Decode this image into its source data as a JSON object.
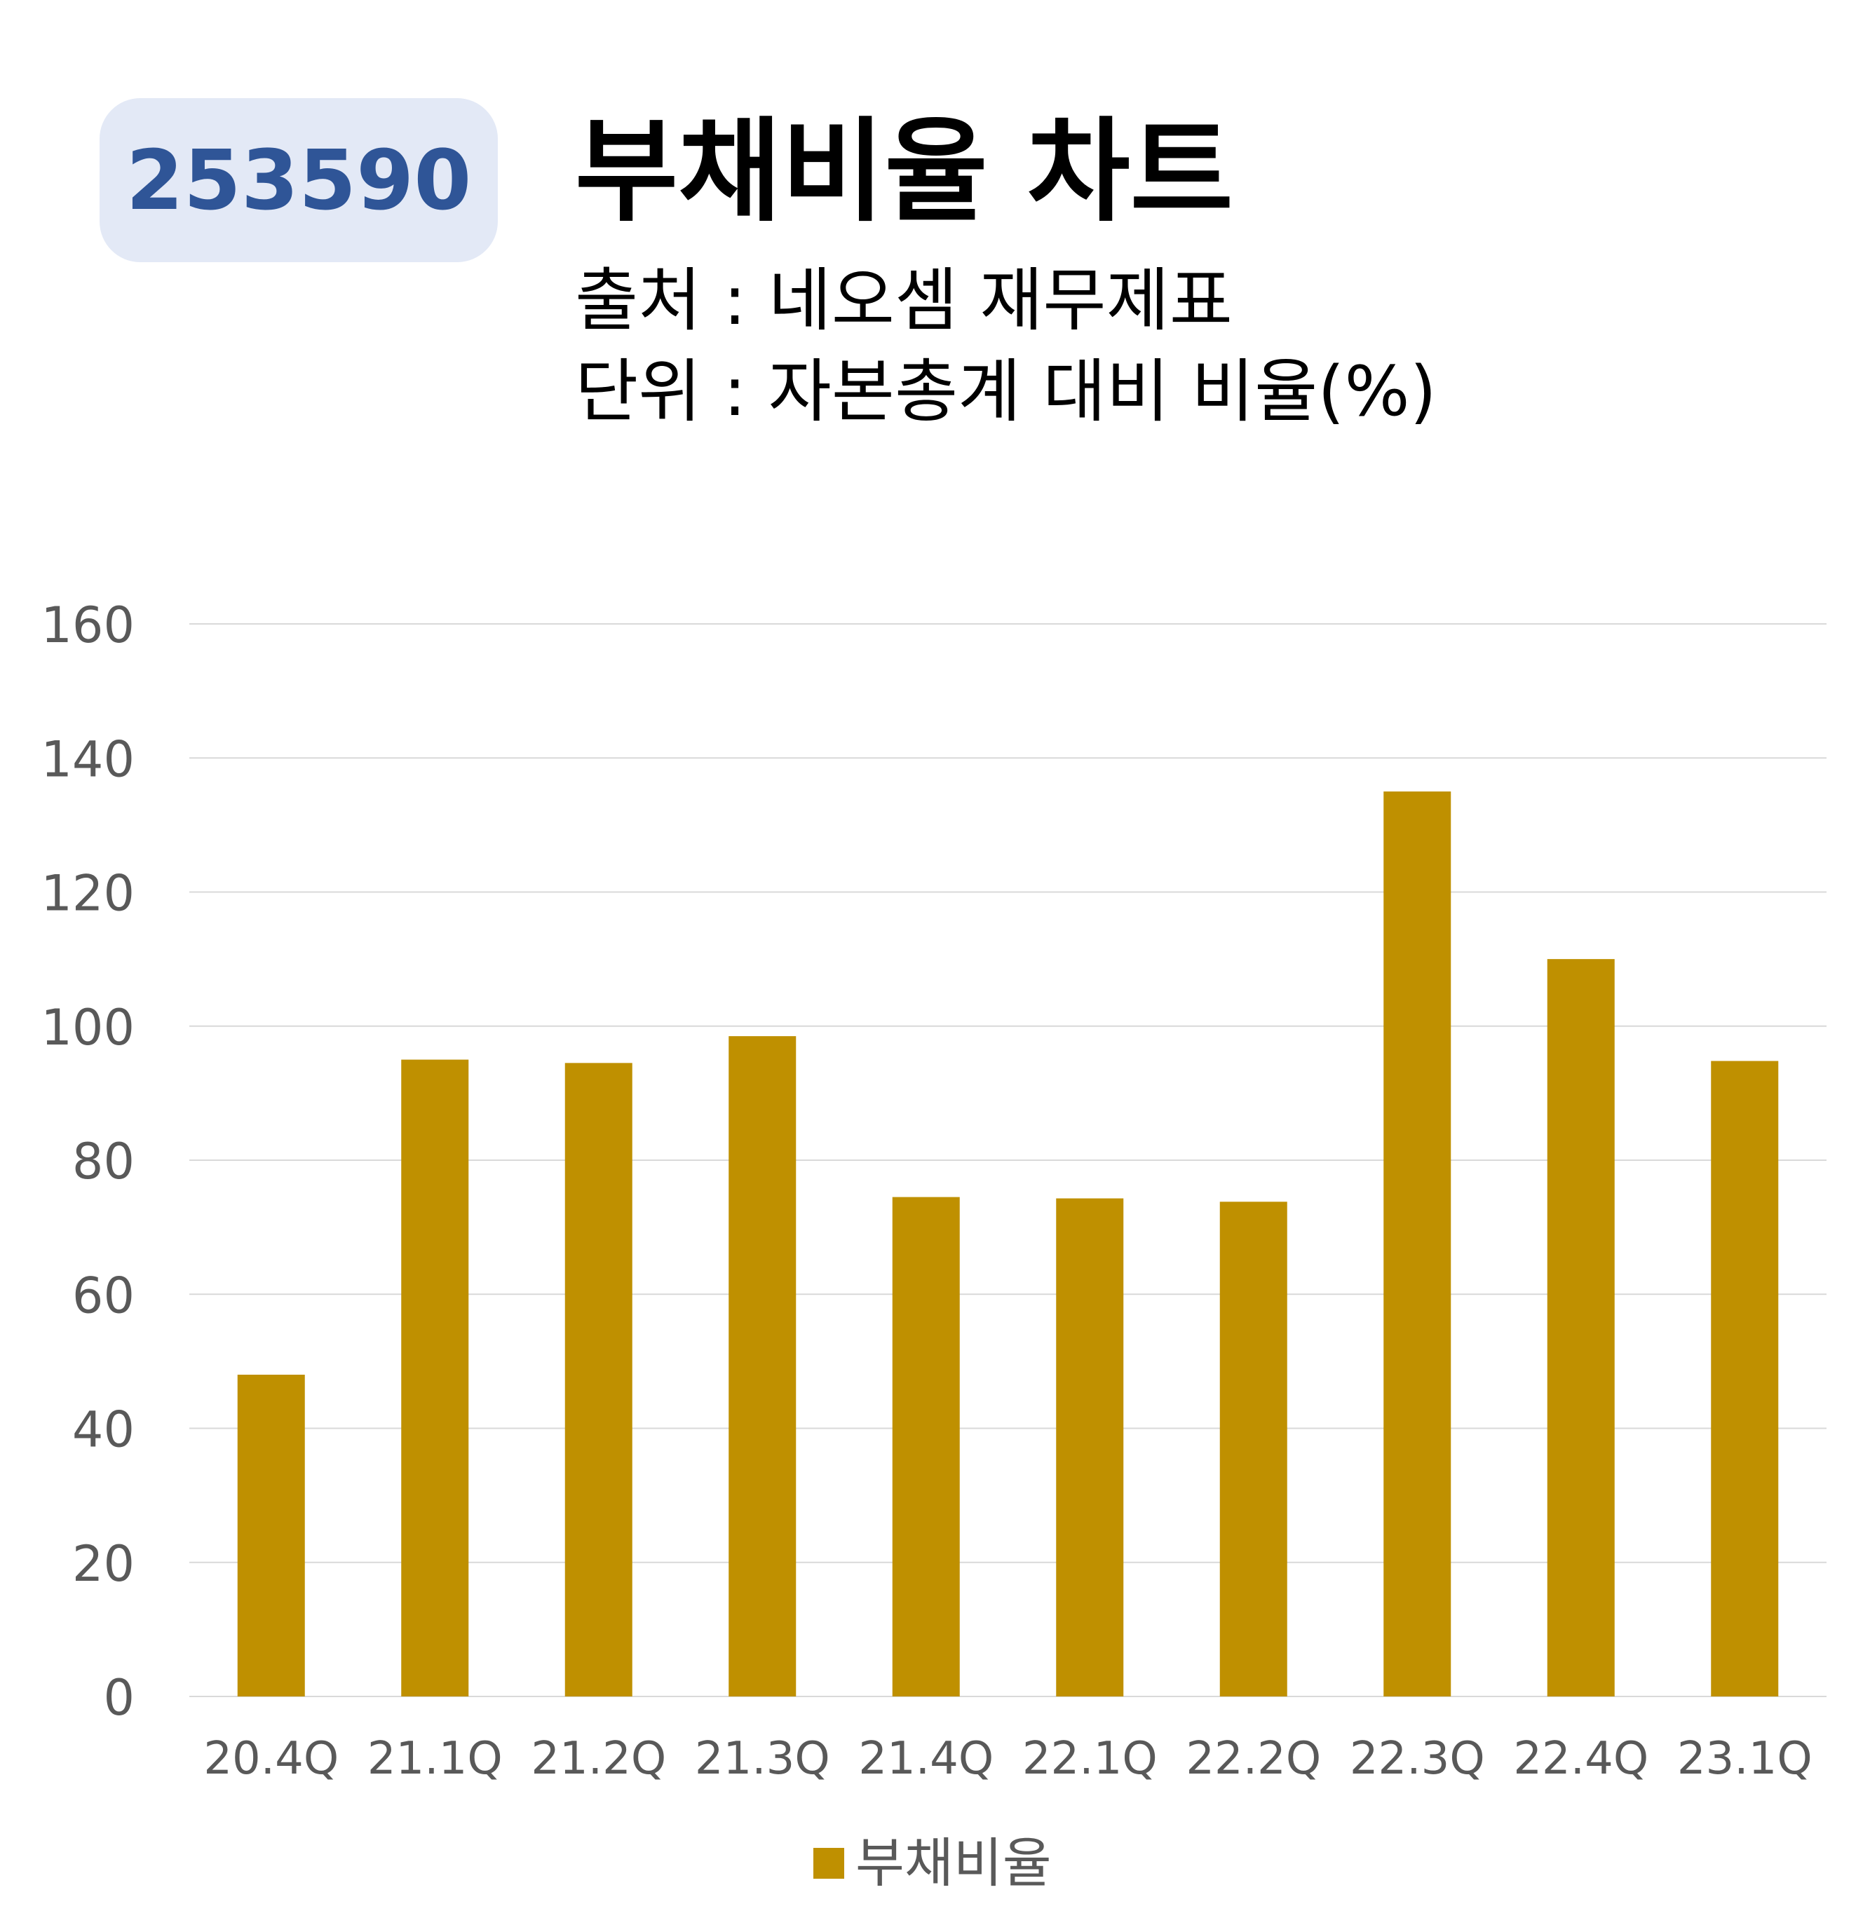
{
  "header": {
    "ticker": "253590",
    "title": "부채비율 차트",
    "source": "출처 : 네오셈 재무제표",
    "unit": "단위 : 자본총계 대비 비율(%)"
  },
  "colors": {
    "badge_bg": "#e3e9f6",
    "badge_text": "#2f5597",
    "bar": "#bf9000",
    "grid": "#d9d9d9",
    "tick_text": "#595959"
  },
  "chart_data": {
    "type": "bar",
    "categories": [
      "20.4Q",
      "21.1Q",
      "21.2Q",
      "21.3Q",
      "21.4Q",
      "22.1Q",
      "22.2Q",
      "22.3Q",
      "22.4Q",
      "23.1Q"
    ],
    "series": [
      {
        "name": "부채비율",
        "values": [
          48,
          95,
          94.5,
          98.5,
          74.5,
          74.3,
          73.8,
          135,
          110,
          94.8
        ]
      }
    ],
    "ylim": [
      0,
      160
    ],
    "yticks": [
      0,
      20,
      40,
      60,
      80,
      100,
      120,
      140,
      160
    ],
    "grid": true,
    "legend_position": "bottom-center"
  }
}
